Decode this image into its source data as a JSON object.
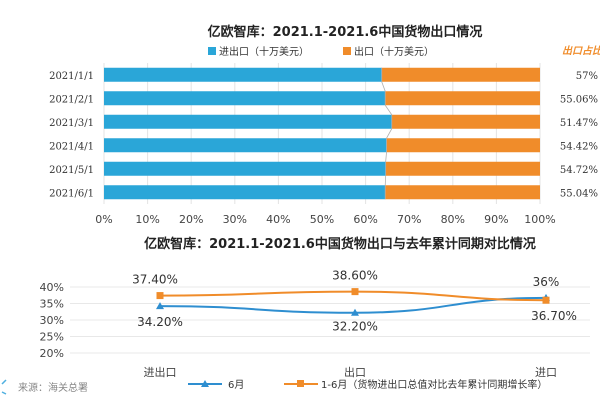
{
  "source": "来源：海关总署",
  "chart_data": [
    {
      "type": "bar",
      "orientation": "horizontal",
      "stacked": "percent",
      "title": "亿欧智库：2021.1-2021.6中国货物出口情况",
      "side_label": "出口占比",
      "categories": [
        "2021/1/1",
        "2021/2/1",
        "2021/3/1",
        "2021/4/1",
        "2021/5/1",
        "2021/6/1"
      ],
      "series": [
        {
          "name": "进出口（十万美元）",
          "color": "#2aa6d8",
          "values": [
            63.7,
            64.5,
            66.0,
            64.8,
            64.6,
            64.5
          ]
        },
        {
          "name": "出口（十万美元）",
          "color": "#f08c2a",
          "values": [
            36.3,
            35.5,
            34.0,
            35.2,
            35.4,
            35.5
          ]
        }
      ],
      "right_labels": [
        "57%",
        "55.06%",
        "51.47%",
        "54.42%",
        "54.72%",
        "55.04%"
      ],
      "xticks": [
        "0%",
        "10%",
        "20%",
        "30%",
        "40%",
        "50%",
        "60%",
        "70%",
        "80%",
        "90%",
        "100%"
      ],
      "xlim": [
        0,
        100
      ]
    },
    {
      "type": "line",
      "title": "亿欧智库：2021.1-2021.6中国货物出口与去年累计同期对比情况",
      "categories": [
        "进出口",
        "出口",
        "进口"
      ],
      "yticks": [
        "20%",
        "25%",
        "30%",
        "35%",
        "40%"
      ],
      "ylim": [
        20,
        40
      ],
      "series": [
        {
          "name": "6月",
          "color": "#2e8ed0",
          "values": [
            34.2,
            32.2,
            36.7
          ],
          "labels": [
            "34.20%",
            "32.20%",
            "36.70%"
          ]
        },
        {
          "name": "1-6月（货物进出口总值对比去年累计同期增长率）",
          "color": "#f08c2a",
          "values": [
            37.4,
            38.6,
            36.0
          ],
          "labels": [
            "37.40%",
            "38.60%",
            "36%"
          ]
        }
      ]
    }
  ]
}
